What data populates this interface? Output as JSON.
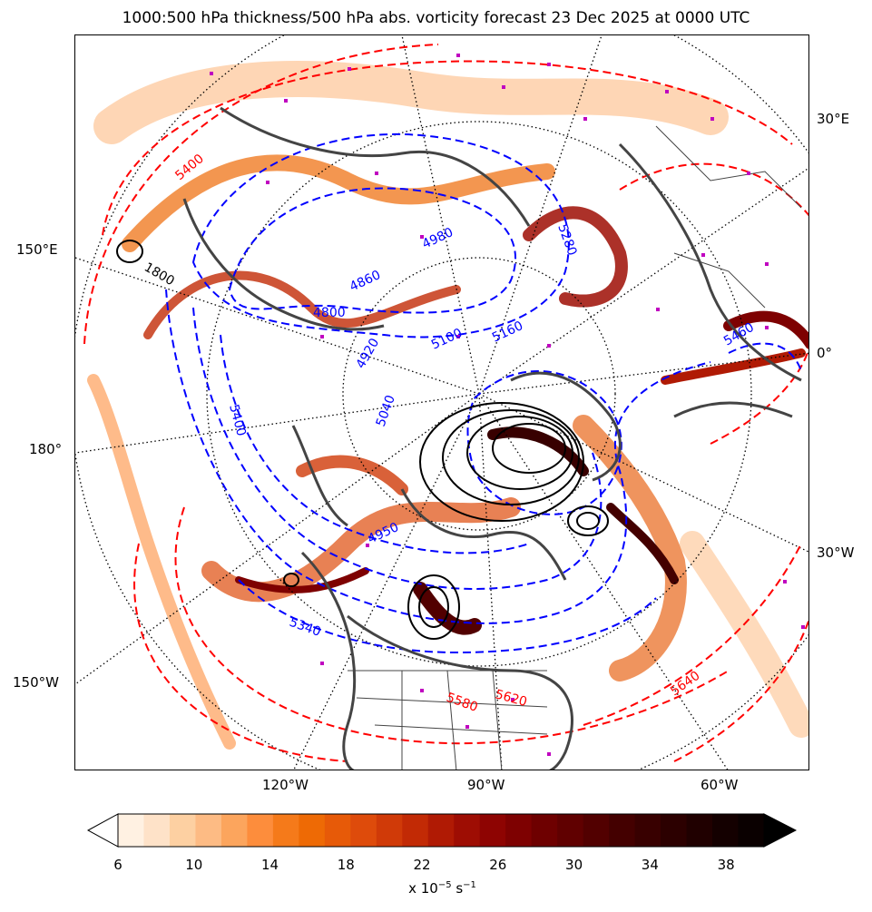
{
  "title": "1000:500 hPa thickness/500 hPa abs. vorticity forecast 23 Dec 2025 at 0000 UTC",
  "longitude_labels": {
    "left_150e": "150°E",
    "left_180": "180°",
    "left_150w": "150°W",
    "right_30e": "30°E",
    "right_0": "0°",
    "right_30w": "30°W",
    "bottom_120w": "120°W",
    "bottom_90w": "90°W",
    "bottom_60w": "60°W"
  },
  "thickness_contour_labels": {
    "blue": [
      "4980",
      "4860",
      "4800",
      "5100",
      "5160",
      "5040",
      "4920",
      "5400",
      "5460",
      "5280",
      "4950",
      "5340"
    ],
    "red": [
      "5580",
      "5620",
      "5640",
      "5400"
    ],
    "black": [
      "1800"
    ]
  },
  "colorbar": {
    "min": 6,
    "max": 40,
    "step": 2,
    "ticks": [
      "6",
      "10",
      "14",
      "18",
      "22",
      "26",
      "30",
      "34",
      "38"
    ],
    "label_prefix": "x 10",
    "label_exponent": "−5",
    "label_unit": " s",
    "label_unit_exponent": "−1",
    "extend": "both",
    "colormap": [
      "#ffffff",
      "#fff1e2",
      "#fee2c8",
      "#fdd0a2",
      "#fdbb84",
      "#fca55d",
      "#fd8d3c",
      "#f57a1a",
      "#ee6a05",
      "#e75a08",
      "#de4b0b",
      "#d03a08",
      "#c22a05",
      "#b01a04",
      "#9e0d03",
      "#8e0402",
      "#7e0101",
      "#6e0000",
      "#600000",
      "#520000",
      "#440000",
      "#380000",
      "#2c0000",
      "#200000",
      "#140000",
      "#0a0000",
      "#000000"
    ]
  },
  "colors": {
    "coastline": "#444444",
    "thickness_cold": "#0000ff",
    "thickness_warm": "#ff0000",
    "height": "#000000",
    "marker": "#c000c0",
    "graticule": "#000000"
  }
}
